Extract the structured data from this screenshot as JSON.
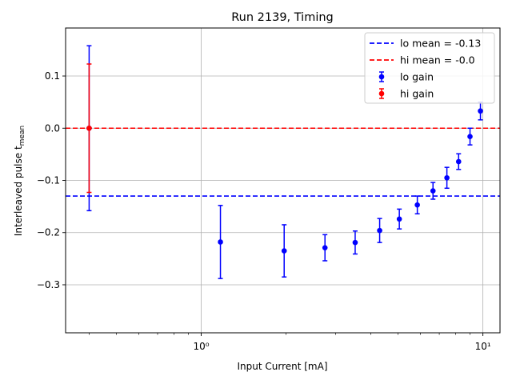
{
  "chart_data": {
    "type": "scatter",
    "title": "Run 2139, Timing",
    "xlabel": "Input Current [mA]",
    "ylabel_text": "Interleaved pulse t",
    "ylabel_subscript": "mean",
    "xscale": "log",
    "xlim": [
      0.33,
      11.5
    ],
    "ylim": [
      -0.392,
      0.192
    ],
    "x_major_ticks": [
      1,
      10
    ],
    "x_tick_labels": [
      "10⁰",
      "10¹"
    ],
    "y_ticks": [
      0.1,
      0.0,
      -0.1,
      -0.2,
      -0.3
    ],
    "y_tick_labels": [
      "0.1",
      "0.0",
      "−0.1",
      "−0.2",
      "−0.3"
    ],
    "grid": true,
    "legend_position": "top-right",
    "hlines": [
      {
        "label": "lo mean = -0.13",
        "y": -0.13,
        "color": "#0000ff",
        "style": "dashed"
      },
      {
        "label": "hi mean = -0.0",
        "y": 0.0,
        "color": "#ff0000",
        "style": "dashed"
      }
    ],
    "series": [
      {
        "name": "lo gain",
        "color": "#0000ff",
        "x": [
          0.4,
          1.17,
          1.97,
          2.75,
          3.52,
          4.3,
          5.05,
          5.85,
          6.65,
          7.45,
          8.2,
          9.0,
          9.8
        ],
        "y": [
          0.0,
          -0.218,
          -0.235,
          -0.229,
          -0.219,
          -0.196,
          -0.174,
          -0.147,
          -0.12,
          -0.095,
          -0.064,
          -0.016,
          0.033
        ],
        "yerr": [
          0.158,
          0.07,
          0.05,
          0.025,
          0.022,
          0.023,
          0.019,
          0.017,
          0.016,
          0.02,
          0.015,
          0.016,
          0.017
        ]
      },
      {
        "name": "hi gain",
        "color": "#ff0000",
        "x": [
          0.4
        ],
        "y": [
          0.0
        ],
        "yerr": [
          0.123
        ]
      }
    ]
  }
}
